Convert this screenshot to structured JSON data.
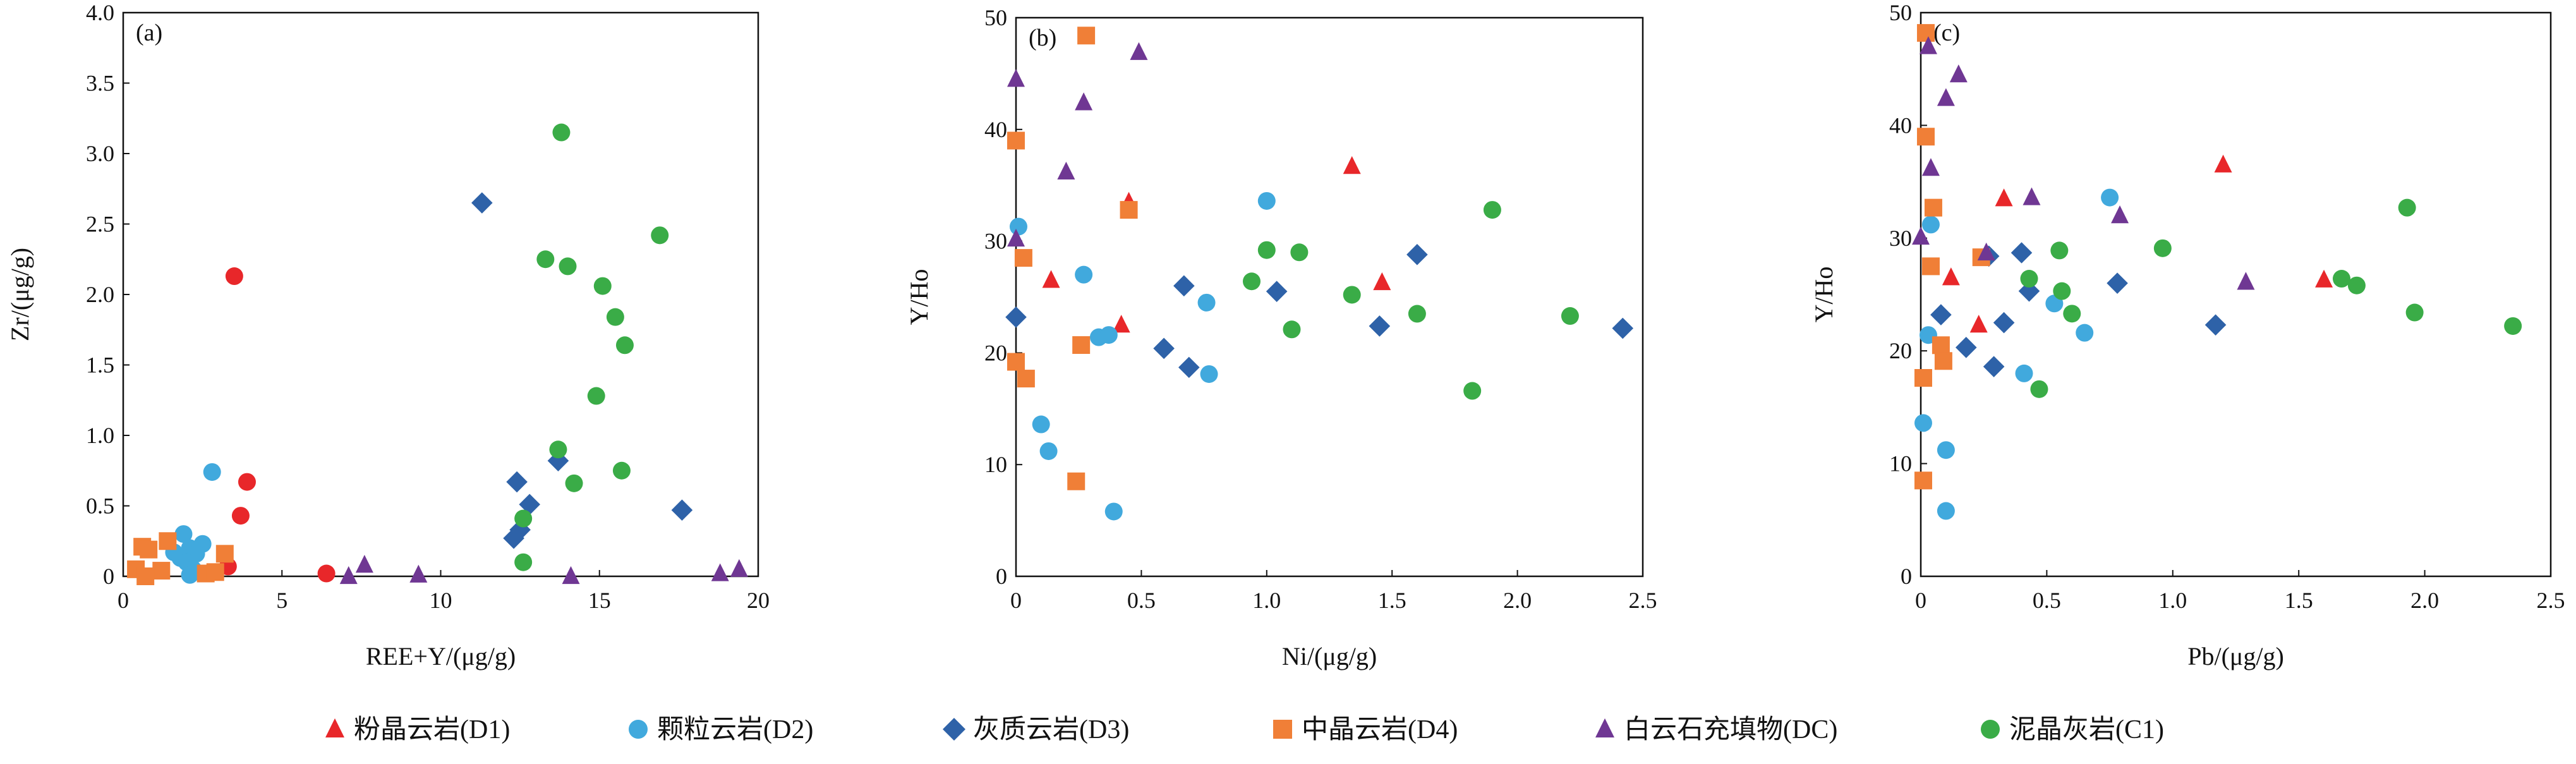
{
  "chart_data": [
    {
      "type": "scatter",
      "panel_label": "(a)",
      "xlabel": "REE+Y/(μg/g)",
      "ylabel": "Zr/(μg/g)",
      "xlim": [
        0,
        20
      ],
      "ylim": [
        0,
        4.0
      ],
      "xticks": [
        0,
        5,
        10,
        15,
        20
      ],
      "xtick_labels": [
        "0",
        "5",
        "10",
        "15",
        "20"
      ],
      "yticks": [
        0,
        0.5,
        1.0,
        1.5,
        2.0,
        2.5,
        3.0,
        3.5,
        4.0
      ],
      "ytick_labels": [
        "0",
        "0.5",
        "1.0",
        "1.5",
        "2.0",
        "2.5",
        "3.0",
        "3.5",
        "4.0"
      ],
      "grid": false,
      "series": [
        {
          "name": "粉晶云岩(D1)",
          "marker": "circle",
          "color": "#e8272a",
          "points": [
            [
              3.5,
              2.13
            ],
            [
              3.9,
              0.67
            ],
            [
              3.7,
              0.43
            ],
            [
              3.3,
              0.07
            ],
            [
              6.4,
              0.02
            ]
          ]
        },
        {
          "name": "颗粒云岩(D2)",
          "marker": "circle",
          "color": "#41a9dd",
          "points": [
            [
              2.8,
              0.74
            ],
            [
              1.9,
              0.3
            ],
            [
              2.5,
              0.23
            ],
            [
              2.1,
              0.2
            ],
            [
              1.6,
              0.17
            ],
            [
              1.8,
              0.13
            ],
            [
              2.3,
              0.16
            ],
            [
              2.0,
              0.1
            ],
            [
              2.2,
              0.05
            ],
            [
              2.1,
              0.01
            ]
          ]
        },
        {
          "name": "灰质云岩(D3)",
          "marker": "diamond",
          "color": "#2e62a8",
          "points": [
            [
              11.3,
              2.65
            ],
            [
              12.4,
              0.67
            ],
            [
              13.7,
              0.82
            ],
            [
              12.8,
              0.51
            ],
            [
              12.5,
              0.33
            ],
            [
              12.3,
              0.27
            ],
            [
              17.6,
              0.47
            ]
          ]
        },
        {
          "name": "中晶云岩(D4)",
          "marker": "square",
          "color": "#f07f37",
          "points": [
            [
              0.6,
              0.21
            ],
            [
              0.8,
              0.19
            ],
            [
              1.4,
              0.25
            ],
            [
              3.2,
              0.16
            ],
            [
              0.4,
              0.05
            ],
            [
              1.2,
              0.04
            ],
            [
              0.7,
              0.0
            ],
            [
              2.6,
              0.02
            ],
            [
              2.9,
              0.03
            ]
          ]
        },
        {
          "name": "白云石充填物(DC)",
          "marker": "triangle",
          "color": "#6f3793",
          "points": [
            [
              7.6,
              0.08
            ],
            [
              7.1,
              0.0
            ],
            [
              9.3,
              0.01
            ],
            [
              14.1,
              0.0
            ],
            [
              18.8,
              0.02
            ],
            [
              19.4,
              0.05
            ]
          ]
        },
        {
          "name": "泥晶灰岩(C1)",
          "marker": "circle",
          "color": "#3aac47",
          "points": [
            [
              13.8,
              3.15
            ],
            [
              13.3,
              2.25
            ],
            [
              14.0,
              2.2
            ],
            [
              16.9,
              2.42
            ],
            [
              15.1,
              2.06
            ],
            [
              15.5,
              1.84
            ],
            [
              15.8,
              1.64
            ],
            [
              14.9,
              1.28
            ],
            [
              13.7,
              0.9
            ],
            [
              15.7,
              0.75
            ],
            [
              14.2,
              0.66
            ],
            [
              12.6,
              0.41
            ],
            [
              12.6,
              0.1
            ]
          ]
        }
      ]
    },
    {
      "type": "scatter",
      "panel_label": "(b)",
      "xlabel": "Ni/(μg/g)",
      "ylabel": "Y/Ho",
      "xlim": [
        0,
        2.5
      ],
      "ylim": [
        0,
        50
      ],
      "xticks": [
        0,
        0.5,
        1.0,
        1.5,
        2.0,
        2.5
      ],
      "xtick_labels": [
        "0",
        "0.5",
        "1.0",
        "1.5",
        "2.0",
        "2.5"
      ],
      "yticks": [
        0,
        10,
        20,
        30,
        40,
        50
      ],
      "ytick_labels": [
        "0",
        "10",
        "20",
        "30",
        "40",
        "50"
      ],
      "grid": false,
      "series": [
        {
          "name": "粉晶云岩(D1)",
          "marker": "triangle",
          "color": "#e8272a",
          "points": [
            [
              0.45,
              33.5
            ],
            [
              1.34,
              36.7
            ],
            [
              0.14,
              26.5
            ],
            [
              1.46,
              26.3
            ],
            [
              0.42,
              22.5
            ]
          ]
        },
        {
          "name": "颗粒云岩(D2)",
          "marker": "circle",
          "color": "#41a9dd",
          "points": [
            [
              0.01,
              31.3
            ],
            [
              0.27,
              27.0
            ],
            [
              1.0,
              33.6
            ],
            [
              0.76,
              24.5
            ],
            [
              0.33,
              21.4
            ],
            [
              0.37,
              21.6
            ],
            [
              0.77,
              18.1
            ],
            [
              0.1,
              13.6
            ],
            [
              0.13,
              11.2
            ],
            [
              0.39,
              5.8
            ]
          ]
        },
        {
          "name": "灰质云岩(D3)",
          "marker": "diamond",
          "color": "#2e62a8",
          "points": [
            [
              0.0,
              23.2
            ],
            [
              0.67,
              26.0
            ],
            [
              1.04,
              25.5
            ],
            [
              1.6,
              28.8
            ],
            [
              0.59,
              20.4
            ],
            [
              0.69,
              18.7
            ],
            [
              1.45,
              22.4
            ],
            [
              2.42,
              22.2
            ]
          ]
        },
        {
          "name": "中晶云岩(D4)",
          "marker": "square",
          "color": "#f07f37",
          "points": [
            [
              0.28,
              48.4
            ],
            [
              0.0,
              39.0
            ],
            [
              0.03,
              28.5
            ],
            [
              0.45,
              32.8
            ],
            [
              0.26,
              20.7
            ],
            [
              0.0,
              19.2
            ],
            [
              0.04,
              17.7
            ],
            [
              0.24,
              8.5
            ]
          ]
        },
        {
          "name": "白云石充填物(DC)",
          "marker": "triangle",
          "color": "#6f3793",
          "points": [
            [
              0.0,
              44.5
            ],
            [
              0.49,
              46.9
            ],
            [
              0.27,
              42.4
            ],
            [
              0.2,
              36.2
            ],
            [
              0.0,
              30.2
            ]
          ]
        },
        {
          "name": "泥晶灰岩(C1)",
          "marker": "circle",
          "color": "#3aac47",
          "points": [
            [
              1.9,
              32.8
            ],
            [
              1.0,
              29.2
            ],
            [
              1.13,
              29.0
            ],
            [
              0.94,
              26.4
            ],
            [
              1.34,
              25.2
            ],
            [
              1.6,
              23.5
            ],
            [
              2.21,
              23.3
            ],
            [
              1.1,
              22.1
            ],
            [
              1.82,
              16.6
            ]
          ]
        }
      ]
    },
    {
      "type": "scatter",
      "panel_label": "(c)",
      "xlabel": "Pb/(μg/g)",
      "ylabel": "Y/Ho",
      "xlim": [
        0,
        2.5
      ],
      "ylim": [
        0,
        50
      ],
      "xticks": [
        0,
        0.5,
        1.0,
        1.5,
        2.0,
        2.5
      ],
      "xtick_labels": [
        "0",
        "0.5",
        "1.0",
        "1.5",
        "2.0",
        "2.5"
      ],
      "yticks": [
        0,
        10,
        20,
        30,
        40,
        50
      ],
      "ytick_labels": [
        "0",
        "10",
        "20",
        "30",
        "40",
        "50"
      ],
      "grid": false,
      "series": [
        {
          "name": "粉晶云岩(D1)",
          "marker": "triangle",
          "color": "#e8272a",
          "points": [
            [
              1.2,
              36.5
            ],
            [
              0.33,
              33.5
            ],
            [
              0.12,
              26.5
            ],
            [
              1.6,
              26.3
            ],
            [
              0.23,
              22.3
            ]
          ]
        },
        {
          "name": "颗粒云岩(D2)",
          "marker": "circle",
          "color": "#41a9dd",
          "points": [
            [
              0.04,
              31.2
            ],
            [
              0.75,
              33.6
            ],
            [
              0.53,
              24.2
            ],
            [
              0.65,
              21.6
            ],
            [
              0.03,
              21.4
            ],
            [
              0.41,
              18.0
            ],
            [
              0.01,
              13.6
            ],
            [
              0.1,
              11.2
            ],
            [
              0.1,
              5.8
            ]
          ]
        },
        {
          "name": "灰质云岩(D3)",
          "marker": "diamond",
          "color": "#2e62a8",
          "points": [
            [
              0.27,
              28.4
            ],
            [
              0.4,
              28.7
            ],
            [
              0.78,
              26.0
            ],
            [
              0.43,
              25.3
            ],
            [
              0.08,
              23.2
            ],
            [
              0.33,
              22.5
            ],
            [
              1.17,
              22.3
            ],
            [
              0.18,
              20.3
            ],
            [
              0.29,
              18.6
            ]
          ]
        },
        {
          "name": "中晶云岩(D4)",
          "marker": "square",
          "color": "#f07f37",
          "points": [
            [
              0.02,
              48.2
            ],
            [
              0.02,
              39.0
            ],
            [
              0.05,
              32.7
            ],
            [
              0.24,
              28.3
            ],
            [
              0.04,
              27.5
            ],
            [
              0.08,
              20.5
            ],
            [
              0.09,
              19.1
            ],
            [
              0.01,
              17.6
            ],
            [
              0.01,
              8.5
            ]
          ]
        },
        {
          "name": "白云石充填物(DC)",
          "marker": "triangle",
          "color": "#6f3793",
          "points": [
            [
              0.03,
              47.0
            ],
            [
              0.15,
              44.5
            ],
            [
              0.1,
              42.4
            ],
            [
              0.04,
              36.2
            ],
            [
              0.0,
              30.1
            ],
            [
              0.79,
              32.0
            ],
            [
              0.44,
              33.6
            ],
            [
              0.26,
              28.7
            ],
            [
              1.29,
              26.1
            ]
          ]
        },
        {
          "name": "泥晶灰岩(C1)",
          "marker": "circle",
          "color": "#3aac47",
          "points": [
            [
              1.93,
              32.7
            ],
            [
              0.96,
              29.1
            ],
            [
              0.55,
              28.9
            ],
            [
              0.43,
              26.4
            ],
            [
              1.67,
              26.4
            ],
            [
              1.73,
              25.8
            ],
            [
              0.56,
              25.3
            ],
            [
              0.6,
              23.3
            ],
            [
              1.96,
              23.4
            ],
            [
              2.35,
              22.2
            ],
            [
              0.47,
              16.6
            ]
          ]
        }
      ]
    }
  ],
  "legend": {
    "placement": "bottom",
    "items": [
      {
        "label": "粉晶云岩(D1)",
        "marker": "triangle",
        "color": "#e8272a"
      },
      {
        "label": "颗粒云岩(D2)",
        "marker": "circle",
        "color": "#41a9dd"
      },
      {
        "label": "灰质云岩(D3)",
        "marker": "diamond",
        "color": "#2e62a8"
      },
      {
        "label": "中晶云岩(D4)",
        "marker": "square",
        "color": "#f07f37"
      },
      {
        "label": "白云石充填物(DC)",
        "marker": "triangle",
        "color": "#6f3793"
      },
      {
        "label": "泥晶灰岩(C1)",
        "marker": "circle",
        "color": "#3aac47"
      }
    ]
  }
}
